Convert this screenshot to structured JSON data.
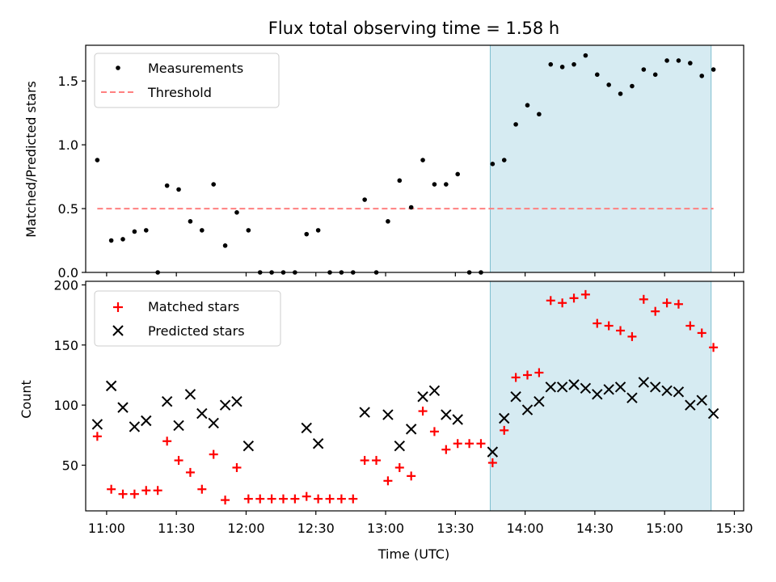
{
  "chart_data": [
    {
      "type": "scatter",
      "title": "Flux total observing time = 1.58 h",
      "ylabel": "Matched/Predicted stars",
      "xlabel": "",
      "xlim": [
        "10:51",
        "15:34"
      ],
      "ylim": [
        0,
        1.78
      ],
      "yticks": [
        0.0,
        0.5,
        1.0,
        1.5
      ],
      "ytick_labels": [
        "0.0",
        "0.5",
        "1.0",
        "1.5"
      ],
      "shaded_span": {
        "x0": "13:45",
        "x1": "15:20",
        "color": "#add8e6"
      },
      "legend": {
        "placement": "top-left",
        "entries": [
          "Measurements",
          "Threshold"
        ]
      },
      "series": [
        {
          "name": "Measurements",
          "marker": "dot",
          "color": "#000000",
          "x": [
            "10:56",
            "11:02",
            "11:07",
            "11:12",
            "11:17",
            "11:22",
            "11:26",
            "11:31",
            "11:36",
            "11:41",
            "11:46",
            "11:51",
            "11:56",
            "12:01",
            "12:06",
            "12:11",
            "12:16",
            "12:21",
            "12:26",
            "12:31",
            "12:36",
            "12:41",
            "12:46",
            "12:51",
            "12:56",
            "13:01",
            "13:06",
            "13:11",
            "13:16",
            "13:21",
            "13:26",
            "13:31",
            "13:36",
            "13:41",
            "13:46",
            "13:51",
            "13:56",
            "14:01",
            "14:06",
            "14:11",
            "14:16",
            "14:21",
            "14:26",
            "14:31",
            "14:36",
            "14:41",
            "14:46",
            "14:51",
            "14:56",
            "15:01",
            "15:06",
            "15:11",
            "15:16",
            "15:21"
          ],
          "y": [
            0.88,
            0.25,
            0.26,
            0.32,
            0.33,
            0.0,
            0.68,
            0.65,
            0.4,
            0.33,
            0.69,
            0.21,
            0.47,
            0.33,
            0.0,
            0.0,
            0.0,
            0.0,
            0.3,
            0.33,
            0.0,
            0.0,
            0.0,
            0.57,
            0.0,
            0.4,
            0.72,
            0.51,
            0.88,
            0.69,
            0.69,
            0.77,
            0.0,
            0.0,
            0.85,
            0.88,
            1.16,
            1.31,
            1.24,
            1.63,
            1.61,
            1.63,
            1.7,
            1.55,
            1.47,
            1.4,
            1.46,
            1.59,
            1.55,
            1.66,
            1.66,
            1.64,
            1.54,
            1.59
          ]
        },
        {
          "name": "Threshold",
          "style": "dashed-line",
          "color": "#ff8080",
          "x": [
            "10:56",
            "15:21"
          ],
          "y": [
            0.5,
            0.5
          ]
        }
      ]
    },
    {
      "type": "scatter",
      "title": "",
      "xlabel": "Time (UTC)",
      "ylabel": "Count",
      "xlim": [
        "10:51",
        "15:34"
      ],
      "ylim": [
        12,
        203
      ],
      "xticks": [
        "11:00",
        "11:30",
        "12:00",
        "12:30",
        "13:00",
        "13:30",
        "14:00",
        "14:30",
        "15:00",
        "15:30"
      ],
      "yticks": [
        50,
        100,
        150,
        200
      ],
      "shaded_span": {
        "x0": "13:45",
        "x1": "15:20",
        "color": "#add8e6"
      },
      "legend": {
        "placement": "top-left",
        "entries": [
          "Matched stars",
          "Predicted stars"
        ]
      },
      "series": [
        {
          "name": "Matched stars",
          "marker": "plus",
          "color": "#ff0000",
          "x": [
            "10:56",
            "11:02",
            "11:07",
            "11:12",
            "11:17",
            "11:22",
            "11:26",
            "11:31",
            "11:36",
            "11:41",
            "11:46",
            "11:51",
            "11:56",
            "12:01",
            "12:06",
            "12:11",
            "12:16",
            "12:21",
            "12:26",
            "12:31",
            "12:36",
            "12:41",
            "12:46",
            "12:51",
            "12:56",
            "13:01",
            "13:06",
            "13:11",
            "13:16",
            "13:21",
            "13:26",
            "13:31",
            "13:36",
            "13:41",
            "13:46",
            "13:51",
            "13:56",
            "14:01",
            "14:06",
            "14:11",
            "14:16",
            "14:21",
            "14:26",
            "14:31",
            "14:36",
            "14:41",
            "14:46",
            "14:51",
            "14:56",
            "15:01",
            "15:06",
            "15:11",
            "15:16",
            "15:21"
          ],
          "y": [
            74,
            30,
            26,
            26,
            29,
            29,
            70,
            54,
            44,
            30,
            59,
            21,
            48,
            22,
            22,
            22,
            22,
            22,
            24,
            22,
            22,
            22,
            22,
            54,
            54,
            37,
            48,
            41,
            95,
            78,
            63,
            68,
            68,
            68,
            52,
            79,
            123,
            125,
            127,
            187,
            185,
            189,
            192,
            168,
            166,
            162,
            157,
            188,
            178,
            185,
            184,
            166,
            160,
            148
          ]
        },
        {
          "name": "Predicted stars",
          "marker": "x",
          "color": "#000000",
          "x": [
            "10:56",
            "11:02",
            "11:07",
            "11:12",
            "11:17",
            "11:26",
            "11:31",
            "11:36",
            "11:41",
            "11:46",
            "11:51",
            "11:56",
            "12:01",
            "12:26",
            "12:31",
            "12:51",
            "13:01",
            "13:06",
            "13:11",
            "13:16",
            "13:21",
            "13:26",
            "13:31",
            "13:46",
            "13:51",
            "13:56",
            "14:01",
            "14:06",
            "14:11",
            "14:16",
            "14:21",
            "14:26",
            "14:31",
            "14:36",
            "14:41",
            "14:46",
            "14:51",
            "14:56",
            "15:01",
            "15:06",
            "15:11",
            "15:16",
            "15:21"
          ],
          "y": [
            84,
            116,
            98,
            82,
            87,
            103,
            83,
            109,
            93,
            85,
            100,
            103,
            66,
            81,
            68,
            94,
            92,
            66,
            80,
            107,
            112,
            92,
            88,
            61,
            89,
            107,
            96,
            103,
            115,
            115,
            117,
            114,
            109,
            113,
            115,
            106,
            119,
            115,
            112,
            111,
            100,
            104,
            93
          ]
        }
      ]
    }
  ]
}
